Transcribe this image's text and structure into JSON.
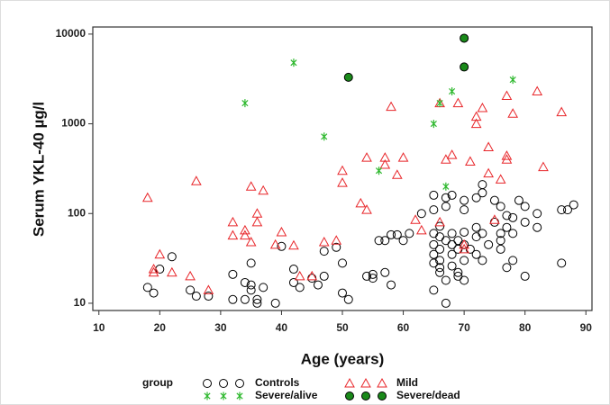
{
  "chart_data": {
    "type": "scatter",
    "x_label": "Age (years)",
    "y_label": "Serum YKL-40 µg/l",
    "xlim": [
      9,
      91
    ],
    "ylim": [
      8.3,
      12000
    ],
    "log_y": true,
    "xticks": [
      10,
      20,
      30,
      40,
      50,
      60,
      70,
      80,
      90
    ],
    "yticks": [
      10,
      100,
      1000,
      10000
    ],
    "legend_title": "group",
    "legend": "bottom",
    "series": [
      {
        "name": "Controls",
        "color": "#000000",
        "marker": "open-circle",
        "x": [
          18,
          19,
          20,
          22,
          25,
          26,
          28,
          32,
          32,
          34,
          34,
          35,
          35,
          35,
          36,
          36,
          37,
          39,
          40,
          42,
          42,
          43,
          45,
          46,
          47,
          47,
          49,
          50,
          50,
          51,
          54,
          55,
          55,
          56,
          57,
          57,
          58,
          58,
          59,
          60,
          61,
          63,
          65,
          65,
          65,
          65,
          65,
          65,
          65,
          66,
          66,
          66,
          66,
          66,
          66,
          67,
          67,
          67,
          67,
          67,
          68,
          68,
          68,
          68,
          68,
          69,
          69,
          69,
          69,
          70,
          70,
          70,
          70,
          70,
          70,
          71,
          72,
          72,
          72,
          72,
          73,
          73,
          73,
          73,
          74,
          75,
          75,
          76,
          76,
          76,
          76,
          77,
          77,
          77,
          78,
          78,
          78,
          79,
          80,
          80,
          80,
          82,
          82,
          86,
          86,
          87,
          88
        ],
        "values": [
          15,
          13,
          24,
          33,
          14,
          12,
          12,
          21,
          11,
          17,
          11,
          16,
          14,
          28,
          11,
          10,
          15,
          10,
          43,
          24,
          17,
          15,
          19,
          16,
          38,
          20,
          42,
          28,
          13,
          11,
          20,
          21,
          19,
          50,
          22,
          50,
          58,
          16,
          58,
          50,
          60,
          100,
          160,
          110,
          60,
          45,
          35,
          28,
          14,
          72,
          55,
          40,
          30,
          25,
          22,
          10,
          18,
          150,
          120,
          50,
          160,
          60,
          45,
          35,
          26,
          50,
          40,
          22,
          20,
          140,
          110,
          62,
          45,
          30,
          18,
          40,
          150,
          70,
          55,
          35,
          60,
          30,
          210,
          170,
          45,
          140,
          80,
          60,
          50,
          40,
          120,
          95,
          70,
          25,
          90,
          60,
          30,
          140,
          120,
          80,
          20,
          100,
          70,
          110,
          28,
          110,
          125
        ]
      },
      {
        "name": "Mild",
        "color": "#e8262a",
        "marker": "open-triangle",
        "x": [
          18,
          19,
          19,
          20,
          22,
          25,
          26,
          28,
          32,
          32,
          34,
          34,
          35,
          35,
          36,
          36,
          37,
          39,
          40,
          42,
          43,
          45,
          47,
          49,
          50,
          50,
          53,
          54,
          54,
          57,
          57,
          58,
          59,
          60,
          62,
          63,
          66,
          66,
          67,
          68,
          69,
          70,
          70,
          71,
          72,
          72,
          73,
          74,
          74,
          75,
          76,
          77,
          77,
          77,
          78,
          82,
          83,
          86
        ],
        "values": [
          150,
          22,
          24,
          35,
          22,
          20,
          230,
          14,
          80,
          57,
          65,
          57,
          48,
          200,
          100,
          80,
          180,
          45,
          62,
          44,
          20,
          20,
          48,
          50,
          300,
          220,
          130,
          420,
          110,
          420,
          350,
          1550,
          270,
          420,
          85,
          65,
          1700,
          80,
          400,
          450,
          1700,
          45,
          40,
          380,
          1200,
          1000,
          1500,
          280,
          550,
          85,
          240,
          440,
          400,
          2050,
          1300,
          2300,
          330,
          1350
        ]
      },
      {
        "name": "Severe/alive",
        "color": "#2db82d",
        "marker": "asterisk",
        "x": [
          42,
          34,
          47,
          56,
          65,
          66,
          68,
          78,
          67
        ],
        "values": [
          4800,
          1700,
          720,
          300,
          1000,
          1700,
          2300,
          3100,
          200
        ]
      },
      {
        "name": "Severe/dead",
        "color": "#1a8a1a",
        "marker": "filled-circle",
        "x": [
          51,
          70,
          70
        ],
        "values": [
          3300,
          9000,
          4300
        ]
      }
    ]
  }
}
